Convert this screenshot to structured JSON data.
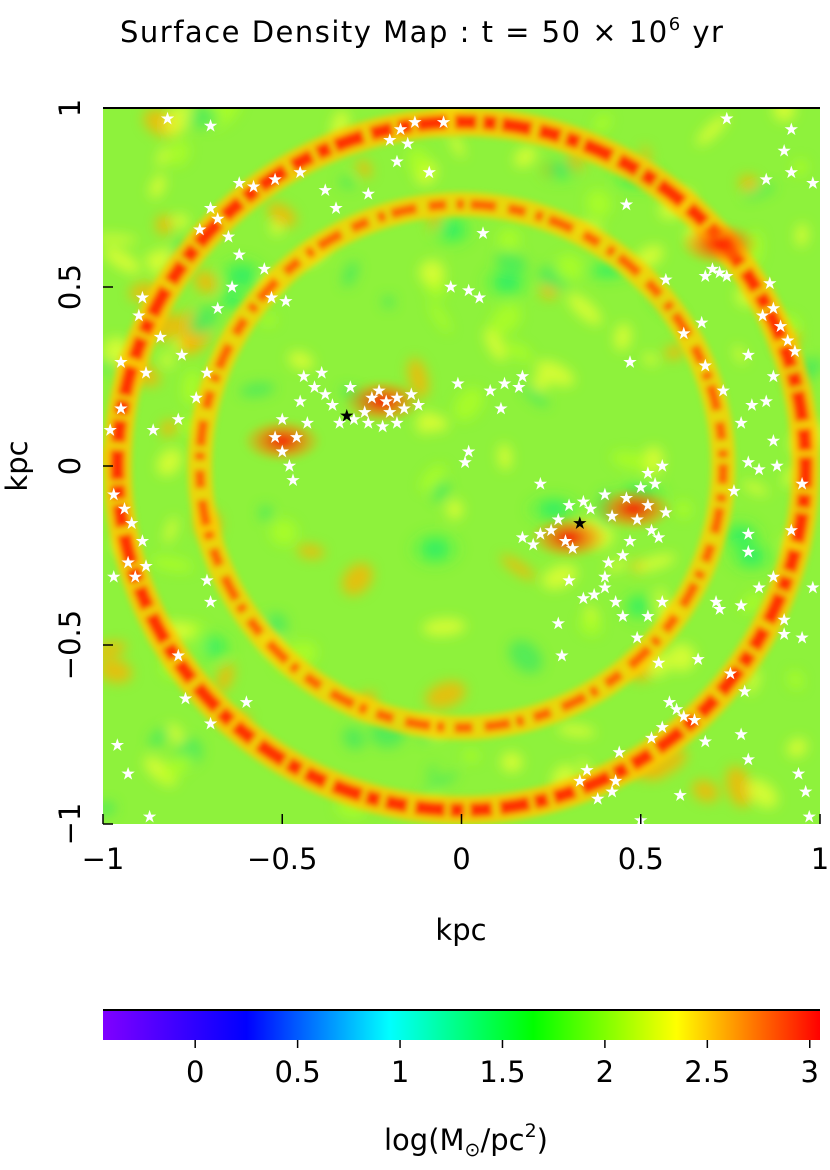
{
  "chart_data": {
    "type": "heatmap",
    "title": {
      "prefix": "Surface Density Map : t = 50 × 10",
      "exponent": "6",
      "suffix": " yr"
    },
    "xlabel": "kpc",
    "ylabel": "kpc",
    "xlim": [
      -1,
      1
    ],
    "ylim": [
      -1,
      1
    ],
    "xticks": [
      -1,
      -0.5,
      0,
      0.5,
      1
    ],
    "yticks": [
      -1,
      -0.5,
      0,
      0.5,
      1
    ],
    "xtick_labels": [
      "−1",
      "−0.5",
      "0",
      "0.5",
      "1"
    ],
    "ytick_labels": [
      "−1",
      "−0.5",
      "0",
      "0.5",
      "1"
    ],
    "colorbar": {
      "label_prefix": "log(M",
      "label_sub": "⊙",
      "label_mid": "/pc",
      "label_sup": "2",
      "label_suffix": ")",
      "range": [
        -0.45,
        3.05
      ],
      "ticks": [
        0,
        0.5,
        1,
        1.5,
        2,
        2.5,
        3
      ],
      "tick_labels": [
        "0",
        "0.5",
        "1",
        "1.5",
        "2",
        "2.5",
        "3"
      ],
      "colors": [
        "#8000ff",
        "#0000ff",
        "#00ffff",
        "#00ff00",
        "#ffff00",
        "#ff0000"
      ]
    },
    "density_structure": {
      "background_level": 1.9,
      "outer_ring": {
        "radius": 0.96,
        "level": 2.8
      },
      "inner_ring": {
        "radius": 0.73,
        "level": 2.5
      },
      "clumps": [
        {
          "x": -0.22,
          "y": 0.18,
          "level": 3.0
        },
        {
          "x": -0.5,
          "y": 0.07,
          "level": 2.9
        },
        {
          "x": 0.3,
          "y": -0.2,
          "level": 2.9
        },
        {
          "x": 0.48,
          "y": -0.12,
          "level": 2.7
        },
        {
          "x": 0.72,
          "y": 0.62,
          "level": 2.8
        }
      ]
    },
    "black_stars": [
      {
        "x": -0.32,
        "y": 0.14
      },
      {
        "x": 0.33,
        "y": -0.16
      }
    ],
    "white_stars": [
      [
        -0.82,
        0.97
      ],
      [
        -0.7,
        0.95
      ],
      [
        -0.62,
        0.79
      ],
      [
        -0.58,
        0.78
      ],
      [
        -0.52,
        0.8
      ],
      [
        -0.45,
        0.82
      ],
      [
        -0.38,
        0.77
      ],
      [
        -0.35,
        0.72
      ],
      [
        -0.26,
        0.76
      ],
      [
        -0.18,
        0.85
      ],
      [
        -0.15,
        0.9
      ],
      [
        -0.2,
        0.91
      ],
      [
        -0.17,
        0.94
      ],
      [
        -0.13,
        0.96
      ],
      [
        -0.05,
        0.96
      ],
      [
        -0.09,
        0.82
      ],
      [
        -0.7,
        0.72
      ],
      [
        -0.68,
        0.69
      ],
      [
        -0.73,
        0.66
      ],
      [
        -0.65,
        0.64
      ],
      [
        -0.62,
        0.59
      ],
      [
        -0.55,
        0.55
      ],
      [
        -0.49,
        0.46
      ],
      [
        -0.53,
        0.47
      ],
      [
        -0.64,
        0.5
      ],
      [
        -0.68,
        0.44
      ],
      [
        -0.89,
        0.47
      ],
      [
        -0.9,
        0.42
      ],
      [
        -0.84,
        0.36
      ],
      [
        -0.78,
        0.31
      ],
      [
        -0.71,
        0.26
      ],
      [
        -0.74,
        0.19
      ],
      [
        -0.95,
        0.29
      ],
      [
        -0.88,
        0.26
      ],
      [
        -0.95,
        0.16
      ],
      [
        -0.98,
        0.1
      ],
      [
        -0.86,
        0.1
      ],
      [
        -0.79,
        0.13
      ],
      [
        -0.97,
        -0.08
      ],
      [
        -0.94,
        -0.12
      ],
      [
        -0.92,
        -0.16
      ],
      [
        -0.89,
        -0.21
      ],
      [
        -0.93,
        -0.27
      ],
      [
        -0.91,
        -0.31
      ],
      [
        -0.88,
        -0.28
      ],
      [
        -0.97,
        -0.31
      ],
      [
        -0.71,
        -0.32
      ],
      [
        -0.7,
        -0.38
      ],
      [
        -0.79,
        -0.53
      ],
      [
        -0.77,
        -0.65
      ],
      [
        -0.96,
        -0.78
      ],
      [
        -0.93,
        -0.86
      ],
      [
        -0.87,
        -0.98
      ],
      [
        -0.7,
        -0.72
      ],
      [
        -0.6,
        -0.66
      ],
      [
        -0.5,
        0.13
      ],
      [
        -0.52,
        0.08
      ],
      [
        -0.5,
        0.04
      ],
      [
        -0.48,
        0.0
      ],
      [
        -0.47,
        -0.04
      ],
      [
        -0.45,
        0.18
      ],
      [
        -0.41,
        0.22
      ],
      [
        -0.44,
        0.25
      ],
      [
        -0.38,
        0.2
      ],
      [
        -0.36,
        0.17
      ],
      [
        -0.34,
        0.12
      ],
      [
        -0.3,
        0.13
      ],
      [
        -0.27,
        0.15
      ],
      [
        -0.25,
        0.19
      ],
      [
        -0.23,
        0.21
      ],
      [
        -0.21,
        0.18
      ],
      [
        -0.2,
        0.15
      ],
      [
        -0.18,
        0.19
      ],
      [
        -0.16,
        0.16
      ],
      [
        -0.14,
        0.2
      ],
      [
        -0.12,
        0.17
      ],
      [
        -0.22,
        0.11
      ],
      [
        -0.18,
        0.12
      ],
      [
        -0.26,
        0.12
      ],
      [
        -0.31,
        0.22
      ],
      [
        -0.39,
        0.26
      ],
      [
        -0.43,
        0.12
      ],
      [
        -0.46,
        0.08
      ],
      [
        -0.01,
        0.23
      ],
      [
        0.08,
        0.21
      ],
      [
        0.12,
        0.23
      ],
      [
        0.16,
        0.22
      ],
      [
        0.17,
        0.25
      ],
      [
        0.11,
        0.16
      ],
      [
        0.02,
        0.49
      ],
      [
        -0.03,
        0.5
      ],
      [
        0.05,
        0.47
      ],
      [
        0.06,
        0.65
      ],
      [
        0.01,
        0.01
      ],
      [
        0.02,
        0.04
      ],
      [
        0.22,
        -0.05
      ],
      [
        0.3,
        -0.11
      ],
      [
        0.17,
        -0.2
      ],
      [
        0.2,
        -0.22
      ],
      [
        0.22,
        -0.19
      ],
      [
        0.25,
        -0.18
      ],
      [
        0.27,
        -0.15
      ],
      [
        0.29,
        -0.21
      ],
      [
        0.31,
        -0.23
      ],
      [
        0.34,
        -0.1
      ],
      [
        0.36,
        -0.12
      ],
      [
        0.4,
        -0.08
      ],
      [
        0.42,
        -0.14
      ],
      [
        0.46,
        -0.09
      ],
      [
        0.5,
        -0.06
      ],
      [
        0.52,
        -0.11
      ],
      [
        0.54,
        -0.05
      ],
      [
        0.49,
        -0.15
      ],
      [
        0.53,
        -0.18
      ],
      [
        0.55,
        -0.2
      ],
      [
        0.57,
        -0.13
      ],
      [
        0.56,
        0.0
      ],
      [
        0.52,
        -0.02
      ],
      [
        0.47,
        -0.21
      ],
      [
        0.45,
        -0.25
      ],
      [
        0.41,
        -0.27
      ],
      [
        0.4,
        -0.31
      ],
      [
        0.4,
        -0.34
      ],
      [
        0.37,
        -0.36
      ],
      [
        0.34,
        -0.37
      ],
      [
        0.3,
        -0.32
      ],
      [
        0.27,
        -0.44
      ],
      [
        0.28,
        -0.53
      ],
      [
        0.43,
        -0.38
      ],
      [
        0.45,
        -0.42
      ],
      [
        0.52,
        -0.42
      ],
      [
        0.56,
        -0.38
      ],
      [
        0.49,
        -0.48
      ],
      [
        0.55,
        -0.55
      ],
      [
        0.58,
        -0.66
      ],
      [
        0.6,
        -0.68
      ],
      [
        0.62,
        -0.7
      ],
      [
        0.65,
        -0.71
      ],
      [
        0.56,
        -0.73
      ],
      [
        0.53,
        -0.76
      ],
      [
        0.44,
        -0.8
      ],
      [
        0.43,
        -0.88
      ],
      [
        0.42,
        -0.91
      ],
      [
        0.35,
        -0.85
      ],
      [
        0.33,
        -0.88
      ],
      [
        0.38,
        -0.93
      ],
      [
        0.5,
        -0.99
      ],
      [
        0.61,
        -0.92
      ],
      [
        0.68,
        -0.77
      ],
      [
        0.78,
        -0.75
      ],
      [
        0.79,
        -0.63
      ],
      [
        0.75,
        -0.58
      ],
      [
        0.66,
        -0.54
      ],
      [
        0.71,
        -0.38
      ],
      [
        0.72,
        -0.4
      ],
      [
        0.78,
        -0.39
      ],
      [
        0.83,
        -0.34
      ],
      [
        0.87,
        -0.31
      ],
      [
        0.8,
        -0.24
      ],
      [
        0.8,
        -0.19
      ],
      [
        0.76,
        -0.07
      ],
      [
        0.8,
        0.01
      ],
      [
        0.83,
        -0.01
      ],
      [
        0.88,
        0.0
      ],
      [
        0.87,
        0.07
      ],
      [
        0.92,
        -0.18
      ],
      [
        0.95,
        -0.05
      ],
      [
        0.98,
        -0.34
      ],
      [
        0.9,
        -0.43
      ],
      [
        0.9,
        -0.47
      ],
      [
        0.95,
        -0.48
      ],
      [
        0.8,
        -0.82
      ],
      [
        0.94,
        -0.86
      ],
      [
        0.96,
        -0.91
      ],
      [
        0.97,
        -0.98
      ],
      [
        0.68,
        0.53
      ],
      [
        0.7,
        0.55
      ],
      [
        0.72,
        0.54
      ],
      [
        0.74,
        0.53
      ],
      [
        0.67,
        0.4
      ],
      [
        0.62,
        0.37
      ],
      [
        0.68,
        0.28
      ],
      [
        0.73,
        0.21
      ],
      [
        0.78,
        0.12
      ],
      [
        0.81,
        0.17
      ],
      [
        0.85,
        0.18
      ],
      [
        0.87,
        0.25
      ],
      [
        0.8,
        0.31
      ],
      [
        0.84,
        0.42
      ],
      [
        0.87,
        0.44
      ],
      [
        0.89,
        0.39
      ],
      [
        0.91,
        0.35
      ],
      [
        0.93,
        0.32
      ],
      [
        0.86,
        0.51
      ],
      [
        0.85,
        0.8
      ],
      [
        0.92,
        0.82
      ],
      [
        0.9,
        0.88
      ],
      [
        0.92,
        0.94
      ],
      [
        0.98,
        0.79
      ],
      [
        0.74,
        0.97
      ],
      [
        0.46,
        0.73
      ],
      [
        0.57,
        0.52
      ],
      [
        0.47,
        0.29
      ]
    ]
  }
}
